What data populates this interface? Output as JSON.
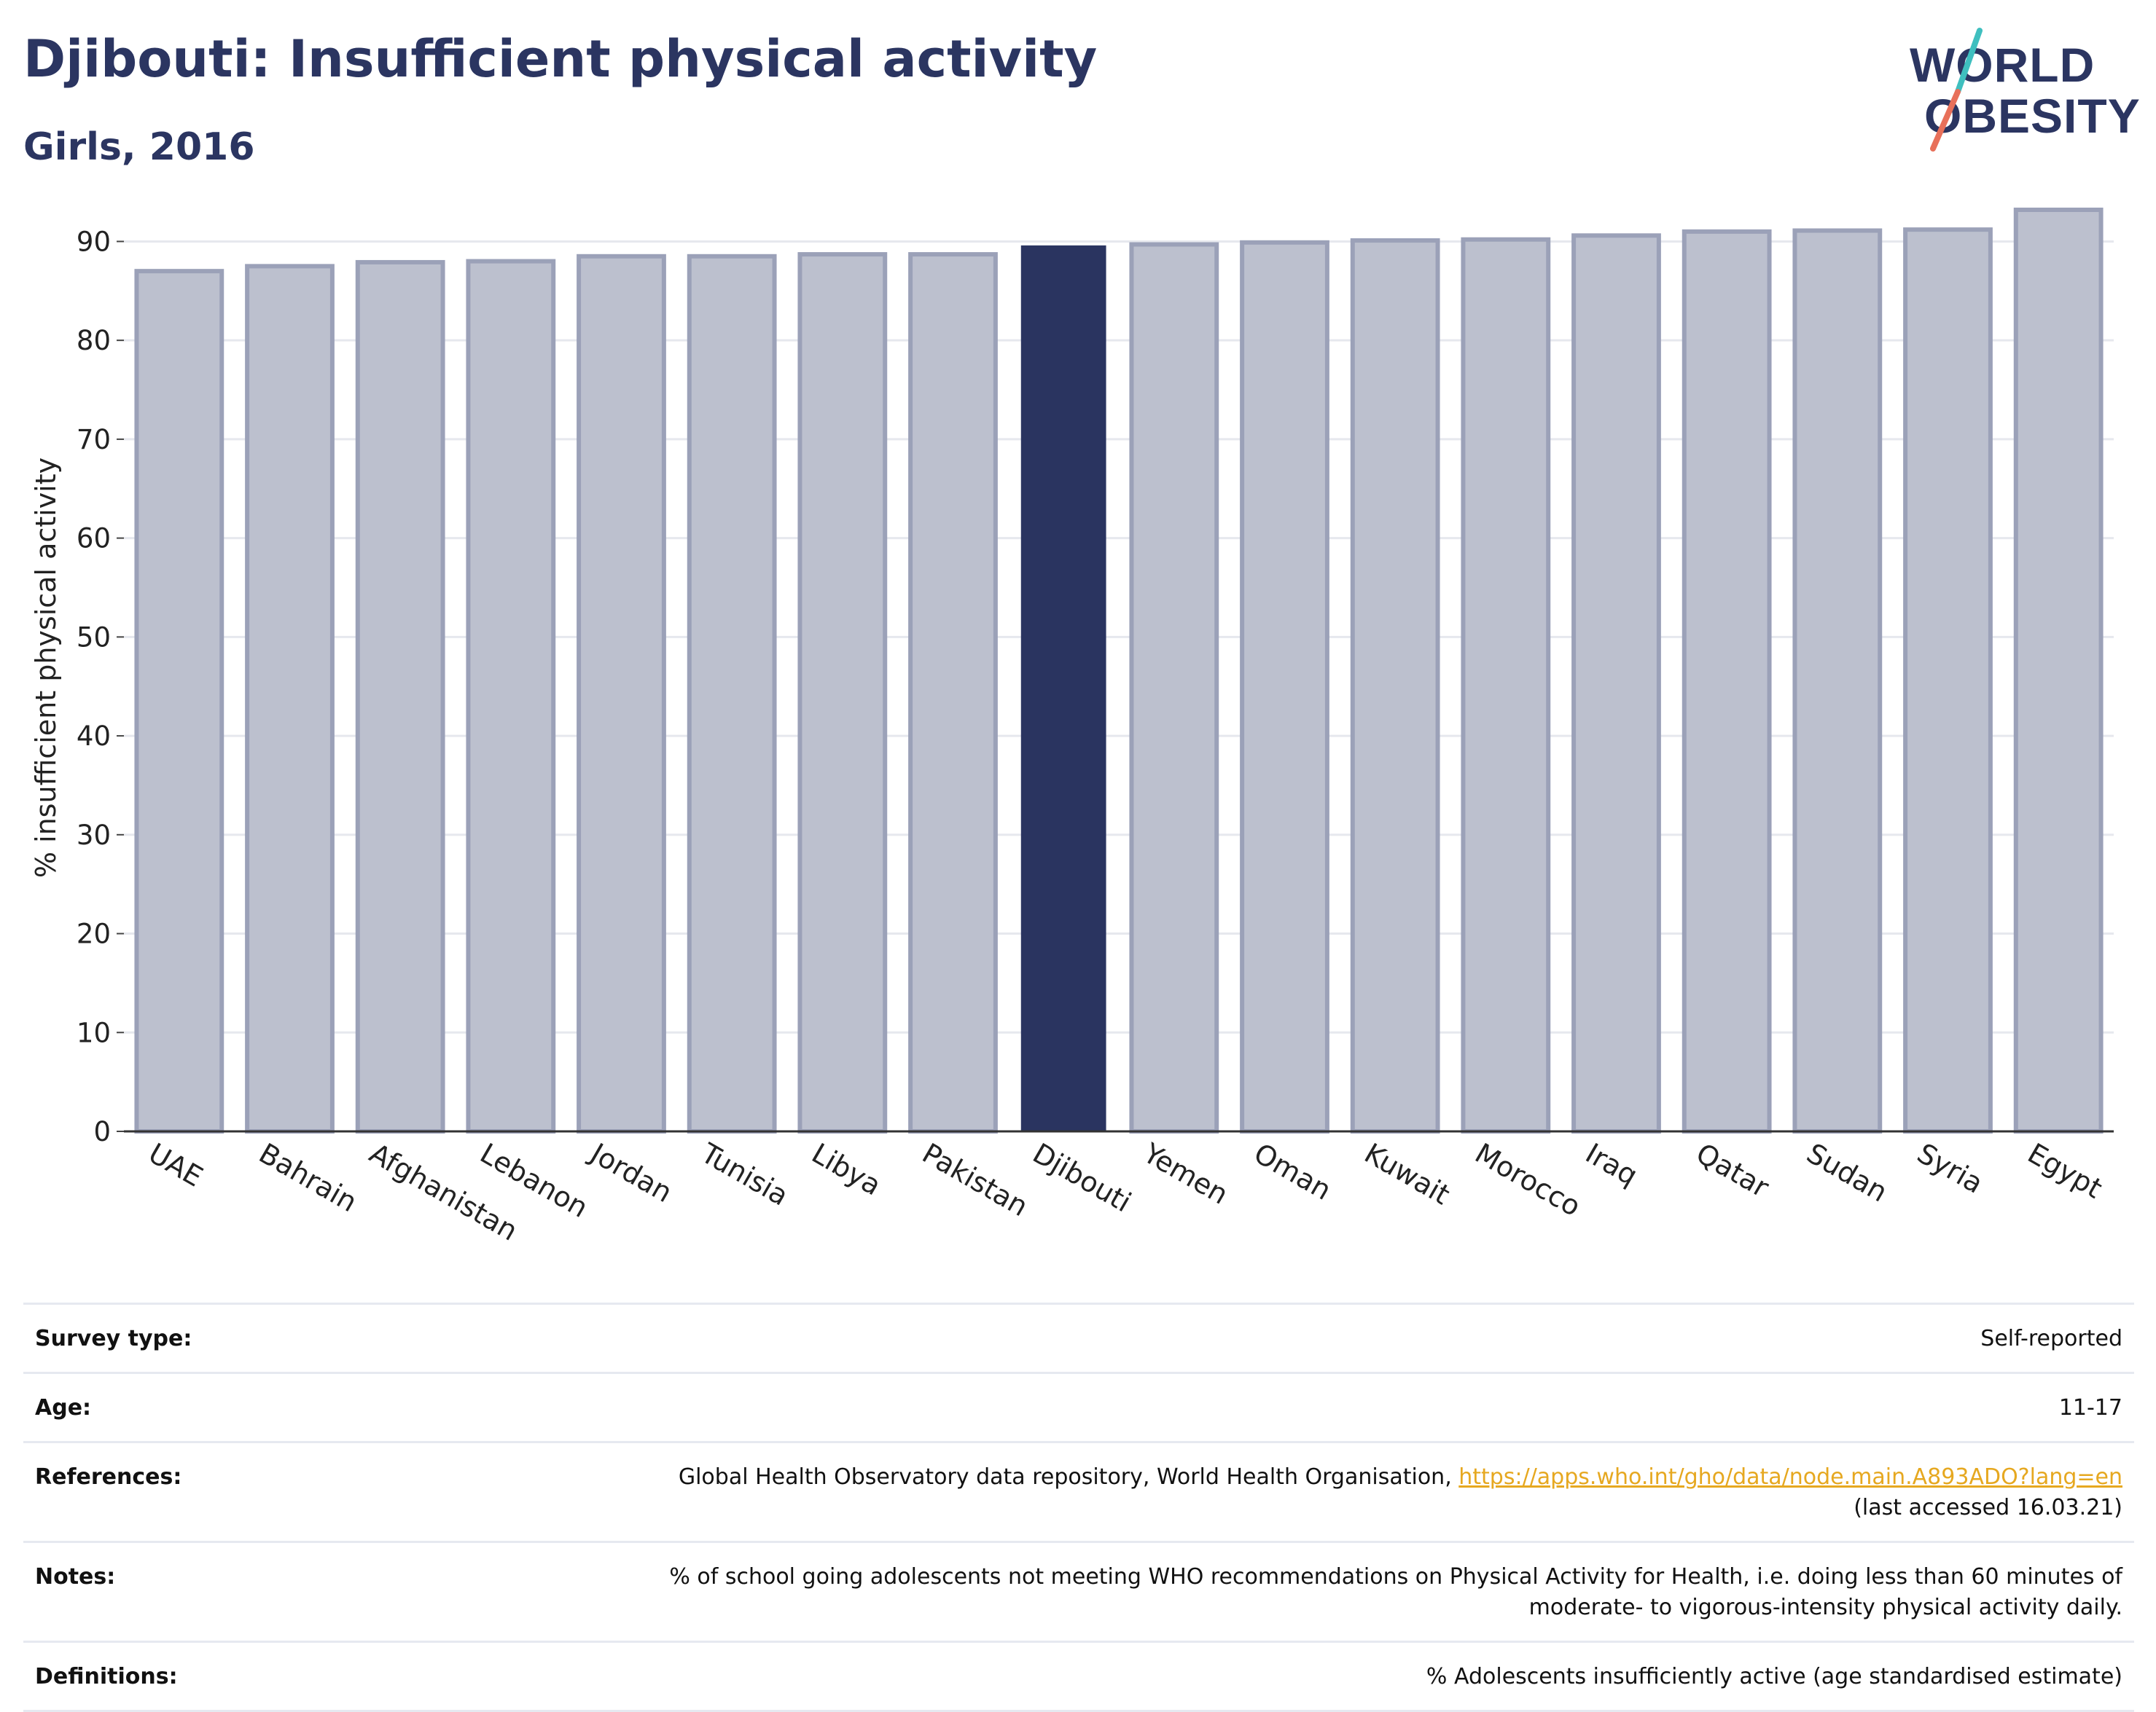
{
  "header": {
    "title": "Djibouti: Insufficient physical activity",
    "subtitle": "Girls, 2016"
  },
  "logo": {
    "line1": "WORLD",
    "line2": "OBESITY",
    "slash_colors": [
      "#3fbfbf",
      "#e8705a"
    ]
  },
  "colors": {
    "highlight": "#2a3460",
    "bar_fill": "#bcc0ce",
    "bar_stroke": "#9ba1b8",
    "grid": "#e6e8ee",
    "link": "#e6a820"
  },
  "chart_data": {
    "type": "bar",
    "title": "Djibouti: Insufficient physical activity",
    "subtitle": "Girls, 2016",
    "xlabel": "",
    "ylabel": "% insufficient physical activity",
    "ylim": [
      0,
      96
    ],
    "yticks": [
      0,
      10,
      20,
      30,
      40,
      50,
      60,
      70,
      80,
      90
    ],
    "grid": true,
    "highlight": "Djibouti",
    "categories": [
      "UAE",
      "Bahrain",
      "Afghanistan",
      "Lebanon",
      "Jordan",
      "Tunisia",
      "Libya",
      "Pakistan",
      "Djibouti",
      "Yemen",
      "Oman",
      "Kuwait",
      "Morocco",
      "Iraq",
      "Qatar",
      "Sudan",
      "Syria",
      "Egypt"
    ],
    "values": [
      87.0,
      87.5,
      87.9,
      88.0,
      88.5,
      88.5,
      88.7,
      88.7,
      89.6,
      89.7,
      89.9,
      90.1,
      90.2,
      90.6,
      91.0,
      91.1,
      91.2,
      93.2
    ]
  },
  "meta": {
    "survey_type": {
      "label": "Survey type:",
      "value": "Self-reported"
    },
    "age": {
      "label": "Age:",
      "value": "11-17"
    },
    "references": {
      "label": "References:",
      "text": "Global Health Observatory data repository, World Health Organisation, ",
      "link": "https://apps.who.int/gho/data/node.main.A893ADO?lang=en",
      "suffix": "(last accessed 16.03.21)"
    },
    "notes": {
      "label": "Notes:",
      "line1": "% of school going adolescents not meeting WHO recommendations on Physical Activity for Health, i.e. doing less than 60 minutes of",
      "line2": "moderate- to vigorous-intensity physical activity daily."
    },
    "definitions": {
      "label": "Definitions:",
      "value": "% Adolescents insufficiently active (age standardised estimate)"
    }
  }
}
